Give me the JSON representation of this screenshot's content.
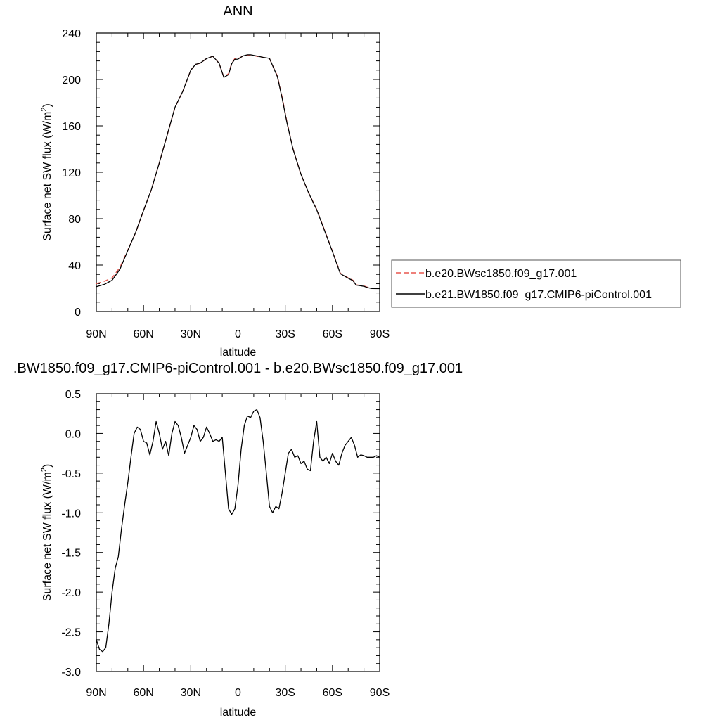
{
  "chart_data": [
    {
      "type": "line",
      "title": "ANN",
      "xlabel": "latitude",
      "ylabel": "Surface net SW flux (W/m",
      "ylabel_sup": "2",
      "ylabel_close": ")",
      "xlim": [
        -90,
        90
      ],
      "ylim": [
        0,
        240
      ],
      "x_ticks": [
        -90,
        -60,
        -30,
        0,
        30,
        60,
        90
      ],
      "x_tick_labels": [
        "90N",
        "60N",
        "30N",
        "0",
        "30S",
        "60S",
        "90S"
      ],
      "y_ticks": [
        0,
        40,
        80,
        120,
        160,
        200,
        240
      ],
      "y_tick_labels": [
        "0",
        "40",
        "80",
        "120",
        "160",
        "200",
        "240"
      ],
      "grid": false,
      "legend_position": "right",
      "series": [
        {
          "name": "b.e20.BWsc1850.f09_g17.001",
          "color": "#e8574f",
          "style": "dashed",
          "x": [
            -90,
            -85,
            -80,
            -75,
            -70,
            -65,
            -60,
            -55,
            -50,
            -45,
            -40,
            -35,
            -30,
            -27,
            -24,
            -20,
            -16,
            -12,
            -9,
            -6,
            -4,
            -2,
            0,
            3,
            6,
            8,
            12,
            16,
            20,
            25,
            28,
            31,
            35,
            40,
            45,
            50,
            55,
            60,
            65,
            70,
            73,
            75,
            80,
            82,
            85,
            90
          ],
          "y": [
            24,
            26,
            29,
            38,
            53,
            68,
            87,
            105,
            128,
            152,
            176,
            190,
            208,
            213,
            214,
            218,
            220,
            214,
            202,
            205,
            214,
            218,
            218,
            220,
            221,
            221,
            220,
            219,
            218,
            203,
            185,
            164,
            140,
            118,
            102,
            88,
            70,
            52,
            33,
            29,
            27,
            23,
            22,
            21,
            20,
            20
          ]
        },
        {
          "name": "b.e21.BW1850.f09_g17.CMIP6-piControl.001",
          "color": "#000000",
          "style": "solid",
          "x": [
            -90,
            -85,
            -80,
            -75,
            -70,
            -65,
            -60,
            -55,
            -50,
            -45,
            -40,
            -35,
            -30,
            -27,
            -24,
            -20,
            -16,
            -12,
            -9,
            -6,
            -4,
            -2,
            0,
            3,
            6,
            8,
            12,
            16,
            20,
            25,
            28,
            31,
            35,
            40,
            45,
            50,
            55,
            60,
            65,
            70,
            73,
            75,
            80,
            82,
            85,
            90
          ],
          "y": [
            21.4,
            23.3,
            26.9,
            36.4,
            52.6,
            68.2,
            87.1,
            105.2,
            128.0,
            152.1,
            176.1,
            190.0,
            208.0,
            213.0,
            214.1,
            218.0,
            220.0,
            214.0,
            201.8,
            204.2,
            213.6,
            217.4,
            217.5,
            220.2,
            221.3,
            221.3,
            220.2,
            219.1,
            218.2,
            202.5,
            184.1,
            163.3,
            139.7,
            118.2,
            101.8,
            87.7,
            69.6,
            51.6,
            32.6,
            28.7,
            26.6,
            22.8,
            21.7,
            20.7,
            19.8,
            19.7
          ]
        }
      ]
    },
    {
      "type": "line",
      "title": ".BW1850.f09_g17.CMIP6-piControl.001 - b.e20.BWsc1850.f09_g17.001",
      "xlabel": "latitude",
      "ylabel": "Surface net SW flux (W/m",
      "ylabel_sup": "2",
      "ylabel_close": ")",
      "xlim": [
        -90,
        90
      ],
      "ylim": [
        -3.0,
        0.5
      ],
      "x_ticks": [
        -90,
        -60,
        -30,
        0,
        30,
        60,
        90
      ],
      "x_tick_labels": [
        "90N",
        "60N",
        "30N",
        "0",
        "30S",
        "60S",
        "90S"
      ],
      "y_ticks": [
        -3.0,
        -2.5,
        -2.0,
        -1.5,
        -1.0,
        -0.5,
        0.0,
        0.5
      ],
      "y_tick_labels": [
        "-3.0",
        "-2.5",
        "-2.0",
        "-1.5",
        "-1.0",
        "-0.5",
        "0.0",
        "0.5"
      ],
      "grid": false,
      "series": [
        {
          "color": "#000000",
          "style": "solid",
          "x": [
            -90,
            -88,
            -86,
            -84,
            -82,
            -80,
            -78,
            -76,
            -74,
            -72,
            -70,
            -68,
            -66,
            -64,
            -62,
            -60,
            -58,
            -56,
            -54,
            -52,
            -50,
            -48,
            -46,
            -44,
            -42,
            -40,
            -38,
            -36,
            -34,
            -32,
            -30,
            -28,
            -26,
            -24,
            -22,
            -20,
            -18,
            -16,
            -14,
            -12,
            -10,
            -8,
            -6,
            -4,
            -2,
            0,
            2,
            4,
            6,
            8,
            10,
            12,
            14,
            16,
            18,
            20,
            22,
            24,
            26,
            28,
            30,
            32,
            34,
            36,
            38,
            40,
            42,
            44,
            46,
            48,
            50,
            52,
            54,
            56,
            58,
            60,
            62,
            64,
            66,
            68,
            70,
            72,
            74,
            76,
            78,
            80,
            82,
            84,
            86,
            88,
            90
          ],
          "y": [
            -2.6,
            -2.72,
            -2.75,
            -2.7,
            -2.4,
            -2.0,
            -1.7,
            -1.55,
            -1.2,
            -0.9,
            -0.62,
            -0.3,
            0.0,
            0.08,
            0.05,
            -0.1,
            -0.12,
            -0.27,
            -0.1,
            0.15,
            0.0,
            -0.2,
            -0.1,
            -0.28,
            0.0,
            0.15,
            0.1,
            -0.05,
            -0.25,
            -0.15,
            -0.05,
            0.1,
            0.05,
            -0.1,
            -0.05,
            0.08,
            0.0,
            -0.1,
            -0.08,
            -0.1,
            -0.05,
            -0.5,
            -0.95,
            -1.02,
            -0.95,
            -0.65,
            -0.2,
            0.1,
            0.22,
            0.2,
            0.28,
            0.3,
            0.2,
            -0.1,
            -0.5,
            -0.92,
            -1.0,
            -0.92,
            -0.95,
            -0.75,
            -0.5,
            -0.25,
            -0.2,
            -0.3,
            -0.28,
            -0.38,
            -0.35,
            -0.45,
            -0.47,
            -0.1,
            0.15,
            -0.3,
            -0.35,
            -0.3,
            -0.38,
            -0.25,
            -0.35,
            -0.4,
            -0.25,
            -0.15,
            -0.1,
            -0.05,
            -0.15,
            -0.3,
            -0.27,
            -0.28,
            -0.3,
            -0.3,
            -0.3,
            -0.28,
            -0.3
          ]
        }
      ]
    }
  ]
}
